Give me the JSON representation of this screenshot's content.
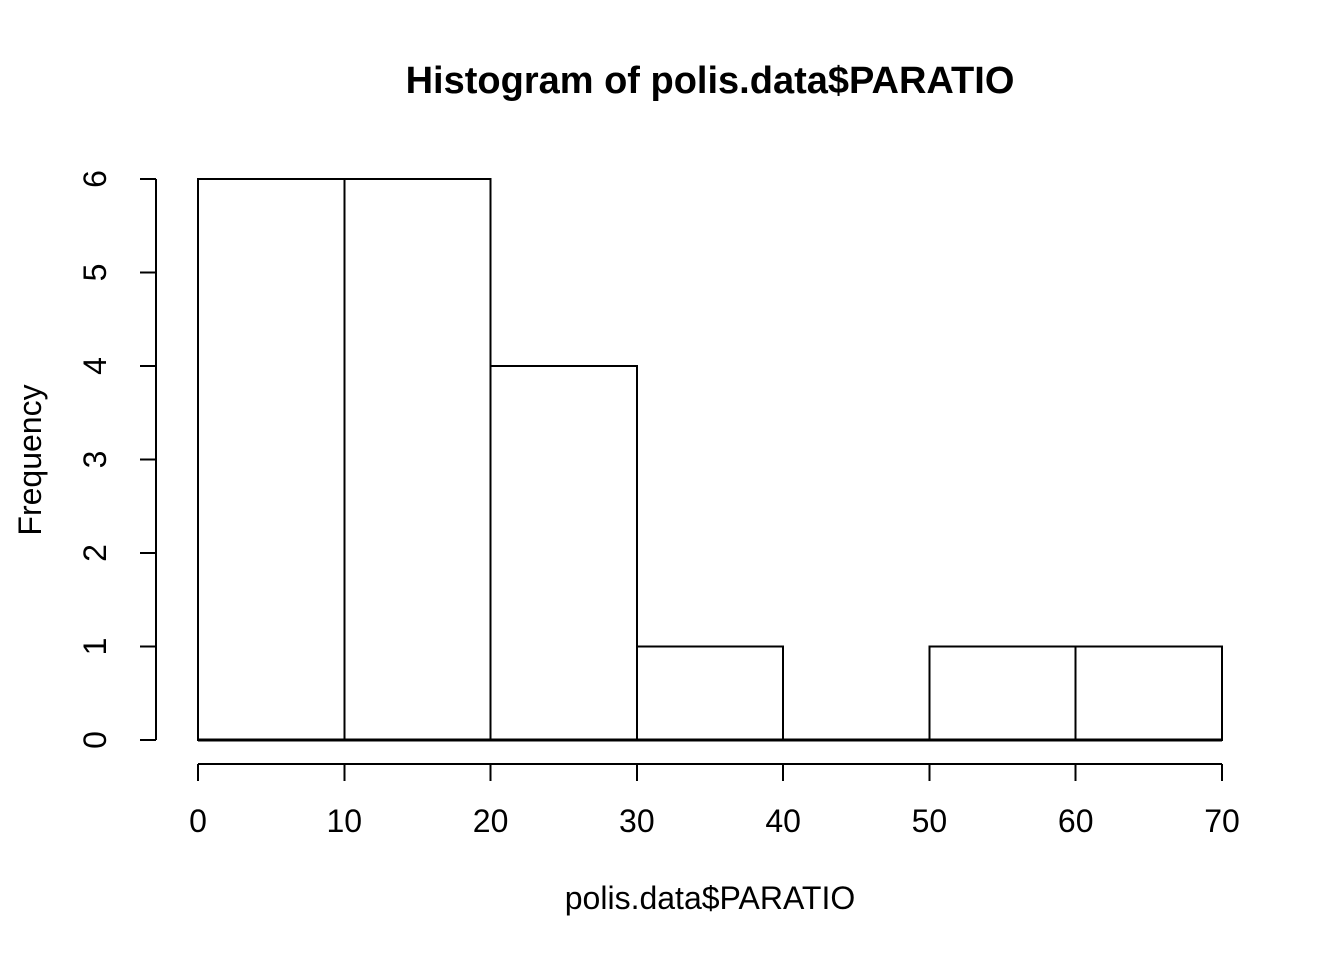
{
  "figure": {
    "background": "#ffffff",
    "foreground": "#000000"
  },
  "chart_data": {
    "type": "bar",
    "subtype": "histogram",
    "title": "Histogram of polis.data$PARATIO",
    "xlabel": "polis.data$PARATIO",
    "ylabel": "Frequency",
    "bin_edges": [
      0,
      10,
      20,
      30,
      40,
      50,
      60,
      70
    ],
    "counts": [
      6,
      6,
      4,
      1,
      0,
      1,
      1
    ],
    "x_ticks": [
      0,
      10,
      20,
      30,
      40,
      50,
      60,
      70
    ],
    "y_ticks": [
      0,
      1,
      2,
      3,
      4,
      5,
      6
    ],
    "xlim": [
      0,
      70
    ],
    "ylim": [
      0,
      6
    ],
    "bar_fill": "#ffffff",
    "bar_stroke": "#000000",
    "axis_color": "#000000",
    "grid": false,
    "legend_position": "none"
  }
}
